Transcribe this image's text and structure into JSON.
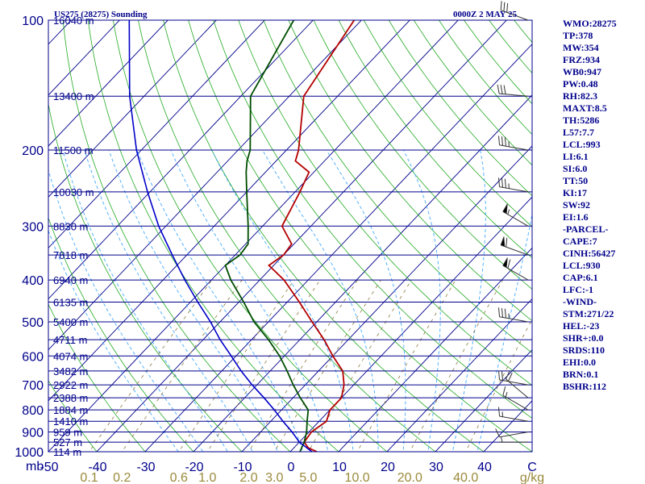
{
  "header": {
    "left_title": "US275 (28275) Sounding",
    "right_title": "0000Z  2 MAY 25"
  },
  "indices": [
    "WMO:28275",
    "TP:378",
    "MW:354",
    "FRZ:934",
    "WB0:947",
    "PW:0.48",
    "RH:82.3",
    "MAXT:8.5",
    "TH:5286",
    "L57:7.7",
    "LCL:993",
    "LI:6.1",
    "SI:6.0",
    "TT:50",
    "KI:17",
    "SW:92",
    "EI:1.6",
    "-PARCEL-",
    "CAPE:7",
    "CINH:56427",
    "LCL:930",
    "CAP:6.1",
    "LFC:-1",
    "-WIND-",
    "STM:271/22",
    "HEL:-23",
    "SHR+:0.0",
    "SRDS:110",
    "EHI:0.0",
    "BRN:0.1",
    "BSHR:112"
  ],
  "colors": {
    "isobar": "#00008b",
    "isotherm": "#00008b",
    "dry_adiabat": "#22aa22",
    "moist_adiabat": "#44aaff",
    "mixing_ratio": "#8a7a40",
    "temperature": "#b40000",
    "dewpoint": "#004d00",
    "parcel": "#0000c8",
    "wind_barb": "#333333"
  },
  "chart_data": {
    "type": "skew-t",
    "title": "US275 (28275) Sounding",
    "pressure_axis_label": "mb",
    "pressure_levels": [
      1000,
      900,
      800,
      700,
      600,
      500,
      400,
      300,
      200,
      100
    ],
    "temperature_ticks": [
      -50,
      -40,
      -30,
      -20,
      -10,
      0,
      10,
      20,
      30,
      40
    ],
    "mixing_ratio_ticks": [
      "0.1",
      "0.2",
      "0.6",
      "1.0",
      "2.0",
      "3.0",
      "5.0",
      "10.0",
      "20.0",
      "40.0"
    ],
    "mixing_ratio_unit": "g/kg",
    "height_labels": [
      {
        "p": 1000,
        "label": "114 m"
      },
      {
        "p": 950,
        "label": "527 m"
      },
      {
        "p": 900,
        "label": "959 m"
      },
      {
        "p": 850,
        "label": "1410 m"
      },
      {
        "p": 800,
        "label": "1884 m"
      },
      {
        "p": 750,
        "label": "2388 m"
      },
      {
        "p": 700,
        "label": "2922 m"
      },
      {
        "p": 650,
        "label": "3482 m"
      },
      {
        "p": 600,
        "label": "4074 m"
      },
      {
        "p": 550,
        "label": "4711 m"
      },
      {
        "p": 500,
        "label": "5400 m"
      },
      {
        "p": 450,
        "label": "6135 m"
      },
      {
        "p": 400,
        "label": "6940 m"
      },
      {
        "p": 350,
        "label": "7818 m"
      },
      {
        "p": 300,
        "label": "8830 m"
      },
      {
        "p": 250,
        "label": "10030 m"
      },
      {
        "p": 200,
        "label": "11500 m"
      },
      {
        "p": 150,
        "label": "13400 m"
      },
      {
        "p": 100,
        "label": "16040 m"
      }
    ],
    "series": [
      {
        "key": "temperature",
        "points": [
          [
            1000,
            5.5
          ],
          [
            980,
            3.0
          ],
          [
            950,
            1.0
          ],
          [
            900,
            0.5
          ],
          [
            850,
            1.5
          ],
          [
            800,
            0.0
          ],
          [
            750,
            0.0
          ],
          [
            700,
            -2.0
          ],
          [
            650,
            -5.0
          ],
          [
            600,
            -10.0
          ],
          [
            550,
            -15.0
          ],
          [
            500,
            -21.0
          ],
          [
            450,
            -27.5
          ],
          [
            400,
            -35.0
          ],
          [
            370,
            -41.0
          ],
          [
            350,
            -40.0
          ],
          [
            330,
            -40.5
          ],
          [
            300,
            -46.0
          ],
          [
            250,
            -49.0
          ],
          [
            225,
            -51.0
          ],
          [
            212,
            -56.0
          ],
          [
            200,
            -57.5
          ],
          [
            150,
            -67.0
          ],
          [
            100,
            -71.5
          ]
        ]
      },
      {
        "key": "dewpoint",
        "points": [
          [
            1000,
            2.0
          ],
          [
            950,
            1.0
          ],
          [
            900,
            -0.5
          ],
          [
            850,
            -2.5
          ],
          [
            800,
            -4.5
          ],
          [
            750,
            -8.5
          ],
          [
            700,
            -12.5
          ],
          [
            650,
            -16.5
          ],
          [
            600,
            -21.0
          ],
          [
            550,
            -26.5
          ],
          [
            500,
            -33.0
          ],
          [
            450,
            -39.0
          ],
          [
            400,
            -46.0
          ],
          [
            370,
            -50.0
          ],
          [
            350,
            -49.0
          ],
          [
            330,
            -49.5
          ],
          [
            300,
            -53.0
          ],
          [
            250,
            -60.0
          ],
          [
            225,
            -64.0
          ],
          [
            212,
            -66.0
          ],
          [
            200,
            -67.5
          ],
          [
            150,
            -78.0
          ],
          [
            100,
            -84.0
          ]
        ]
      },
      {
        "key": "parcel",
        "points": [
          [
            1000,
            4.5
          ],
          [
            950,
            0.0
          ],
          [
            900,
            -3.5
          ],
          [
            850,
            -7.5
          ],
          [
            800,
            -11.5
          ],
          [
            750,
            -16.0
          ],
          [
            700,
            -21.0
          ],
          [
            650,
            -26.0
          ],
          [
            600,
            -31.0
          ],
          [
            550,
            -36.5
          ],
          [
            500,
            -42.0
          ],
          [
            450,
            -48.5
          ],
          [
            400,
            -55.5
          ],
          [
            350,
            -63.0
          ],
          [
            300,
            -71.5
          ],
          [
            250,
            -80.5
          ],
          [
            200,
            -91.0
          ],
          [
            150,
            -103.0
          ],
          [
            100,
            -118.0
          ]
        ]
      }
    ],
    "wind_barbs": [
      {
        "p": 950,
        "dir": 270,
        "kt": 5
      },
      {
        "p": 900,
        "dir": 260,
        "kt": 10
      },
      {
        "p": 850,
        "dir": 280,
        "kt": 15
      },
      {
        "p": 800,
        "dir": 300,
        "kt": 15
      },
      {
        "p": 750,
        "dir": 310,
        "kt": 20
      },
      {
        "p": 700,
        "dir": 280,
        "kt": 20
      },
      {
        "p": 500,
        "dir": 280,
        "kt": 35
      },
      {
        "p": 400,
        "dir": 300,
        "kt": 60
      },
      {
        "p": 350,
        "dir": 290,
        "kt": 60
      },
      {
        "p": 300,
        "dir": 300,
        "kt": 55
      },
      {
        "p": 250,
        "dir": 280,
        "kt": 35
      },
      {
        "p": 200,
        "dir": 280,
        "kt": 35
      },
      {
        "p": 150,
        "dir": 275,
        "kt": 30
      },
      {
        "p": 100,
        "dir": 290,
        "kt": 30
      }
    ]
  }
}
